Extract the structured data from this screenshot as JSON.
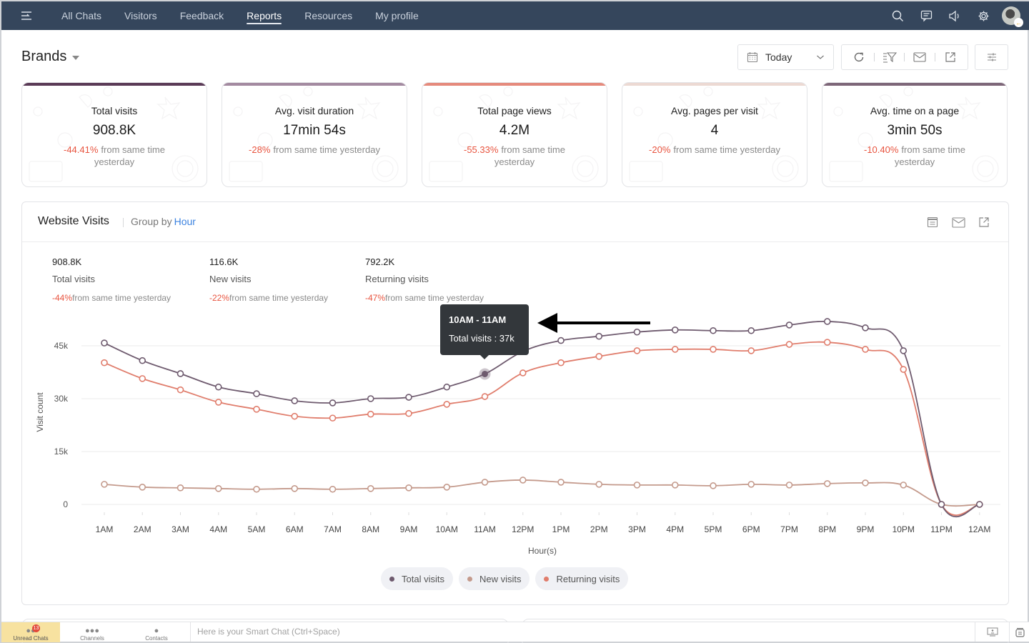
{
  "topbar": {
    "nav": [
      {
        "label": "All Chats",
        "active": false
      },
      {
        "label": "Visitors",
        "active": false
      },
      {
        "label": "Feedback",
        "active": false
      },
      {
        "label": "Reports",
        "active": true
      },
      {
        "label": "Resources",
        "active": false
      },
      {
        "label": "My profile",
        "active": false
      }
    ],
    "icons": [
      "search-icon",
      "chat-bubble-icon",
      "speaker-icon",
      "gear-icon"
    ]
  },
  "header": {
    "title": "Brands",
    "date_filter": "Today",
    "tools": [
      "refresh-icon",
      "filter-icon",
      "email-icon",
      "export-icon"
    ],
    "settings": "sliders-icon"
  },
  "kpis": [
    {
      "title": "Total visits",
      "value": "908.8K",
      "delta": "-44.41%",
      "delta_text": "from same time yesterday",
      "accent": "#5a3a56"
    },
    {
      "title": "Avg. visit duration",
      "value": "17min 54s",
      "delta": "-28%",
      "delta_text": "from same time yesterday",
      "accent": "#a38aa0"
    },
    {
      "title": "Total page views",
      "value": "4.2M",
      "delta": "-55.33%",
      "delta_text": "from same time yesterday",
      "accent": "#e58a7c"
    },
    {
      "title": "Avg. pages per visit",
      "value": "4",
      "delta": "-20%",
      "delta_text": "from same time yesterday",
      "accent": "#ecd9d3"
    },
    {
      "title": "Avg. time on a page",
      "value": "3min 50s",
      "delta": "-10.40%",
      "delta_text": "from same time yesterday",
      "accent": "#7d6678"
    }
  ],
  "panel": {
    "title": "Website Visits",
    "group_by_label": "Group by",
    "group_by_value": "Hour",
    "icons": [
      "table-view-icon",
      "email-icon",
      "export-icon"
    ],
    "stats": [
      {
        "value": "908.8K",
        "label": "Total visits",
        "delta": "-44%",
        "delta_text": "from same time yesterday"
      },
      {
        "value": "116.6K",
        "label": "New visits",
        "delta": "-22%",
        "delta_text": "from same time yesterday"
      },
      {
        "value": "792.2K",
        "label": "Returning visits",
        "delta": "-47%",
        "delta_text": "from same time yesterday"
      }
    ],
    "tooltip": {
      "title": "10AM - 11AM",
      "body": "Total visits : 37k"
    }
  },
  "chart_data": {
    "type": "line",
    "title": "Website Visits",
    "xlabel": "Hour(s)",
    "ylabel": "Visit count",
    "ylim": [
      0,
      52000
    ],
    "yticks": [
      0,
      15000,
      30000,
      45000
    ],
    "ytick_labels": [
      "0",
      "15k",
      "30k",
      "45k"
    ],
    "grid": true,
    "legend_position": "bottom-center",
    "x": [
      "1AM",
      "2AM",
      "3AM",
      "4AM",
      "5AM",
      "6AM",
      "7AM",
      "8AM",
      "9AM",
      "10AM",
      "11AM",
      "12PM",
      "1PM",
      "2PM",
      "3PM",
      "4PM",
      "5PM",
      "6PM",
      "7PM",
      "8PM",
      "9PM",
      "10PM",
      "11PM",
      "12AM"
    ],
    "highlighted": {
      "series": "Total visits",
      "index": 10
    },
    "series": [
      {
        "name": "Total visits",
        "color": "#6e5a6e",
        "values": [
          45800,
          40800,
          37100,
          33300,
          31400,
          29400,
          28800,
          30000,
          30400,
          33300,
          37000,
          43400,
          46500,
          47700,
          48900,
          49500,
          49300,
          49300,
          50900,
          51900,
          50100,
          43600,
          0,
          0
        ]
      },
      {
        "name": "New visits",
        "color": "#c49a8c",
        "values": [
          5700,
          4900,
          4700,
          4500,
          4300,
          4500,
          4300,
          4500,
          4700,
          4900,
          6300,
          6900,
          6300,
          5700,
          5500,
          5500,
          5300,
          5700,
          5500,
          5900,
          6100,
          5500,
          0,
          0
        ]
      },
      {
        "name": "Returning visits",
        "color": "#e07d6c",
        "values": [
          40200,
          35700,
          32500,
          29000,
          27000,
          25000,
          24500,
          25600,
          25800,
          28400,
          30600,
          37300,
          40200,
          42000,
          43600,
          44000,
          44000,
          43600,
          45400,
          46000,
          44000,
          38300,
          0,
          0
        ]
      }
    ]
  },
  "bottombar": {
    "tabs": [
      {
        "label": "Unread Chats",
        "badge": "13",
        "active": true
      },
      {
        "label": "Channels",
        "active": false
      },
      {
        "label": "Contacts",
        "active": false
      }
    ],
    "smart_chat_placeholder": "Here is your Smart Chat (Ctrl+Space)"
  }
}
